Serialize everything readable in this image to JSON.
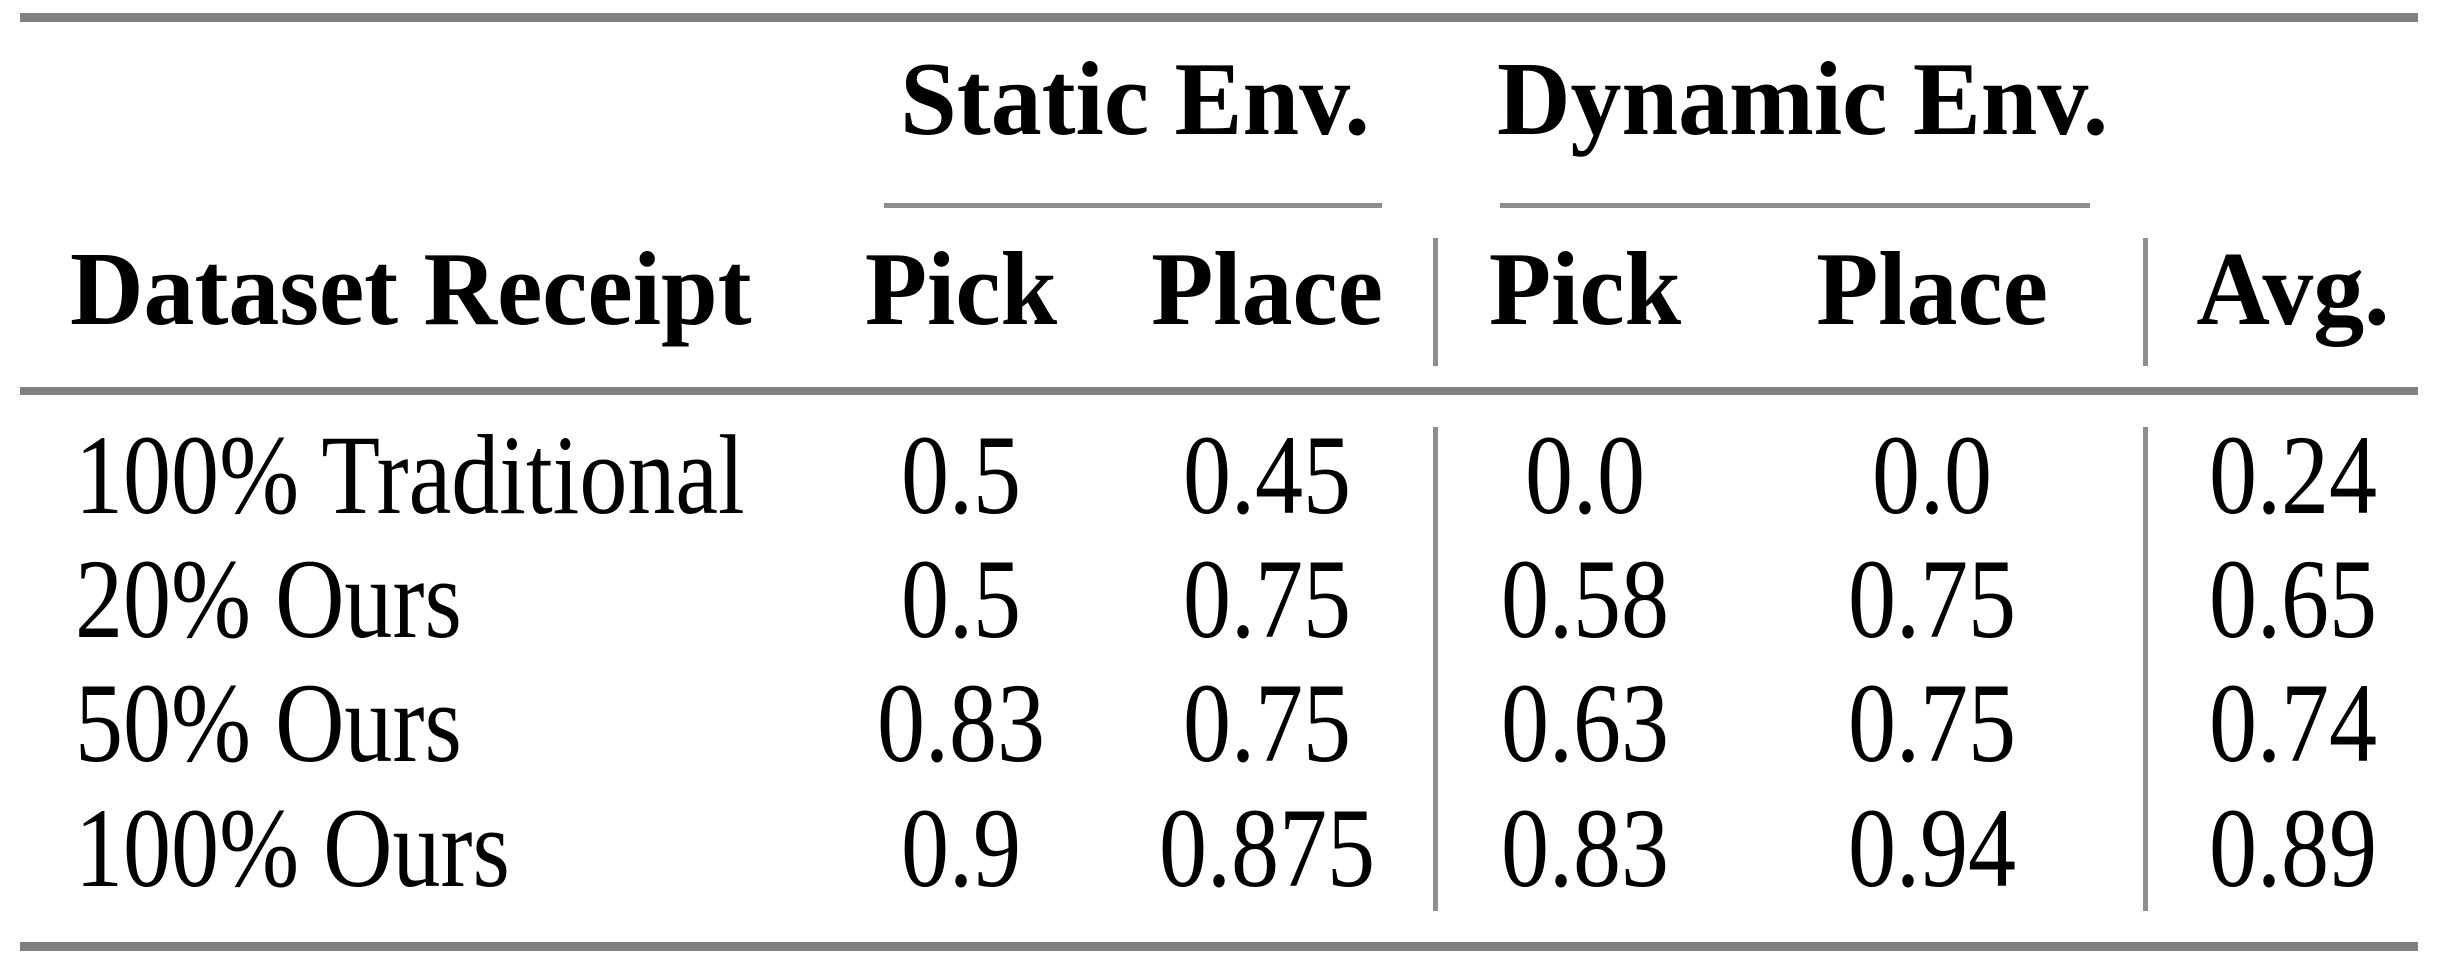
{
  "table": {
    "group_headers": [
      {
        "label": "Static Env."
      },
      {
        "label": "Dynamic Env."
      }
    ],
    "column_headers": {
      "dataset": "Dataset Receipt",
      "static_pick": "Pick",
      "static_place": "Place",
      "dynamic_pick": "Pick",
      "dynamic_place": "Place",
      "avg": "Avg."
    },
    "rows": [
      {
        "label": "100% Traditional",
        "values": [
          "0.5",
          "0.45",
          "0.0",
          "0.0",
          "0.24"
        ]
      },
      {
        "label": "20% Ours",
        "values": [
          "0.5",
          "0.75",
          "0.58",
          "0.75",
          "0.65"
        ]
      },
      {
        "label": "50% Ours",
        "values": [
          "0.83",
          "0.75",
          "0.63",
          "0.75",
          "0.74"
        ]
      },
      {
        "label": "100% Ours",
        "values": [
          "0.9",
          "0.875",
          "0.83",
          "0.94",
          "0.89"
        ]
      }
    ],
    "colors": {
      "rule_thick": "#808080",
      "rule_thin": "#8e8e8e",
      "text": "#000000",
      "background": "#ffffff"
    }
  }
}
